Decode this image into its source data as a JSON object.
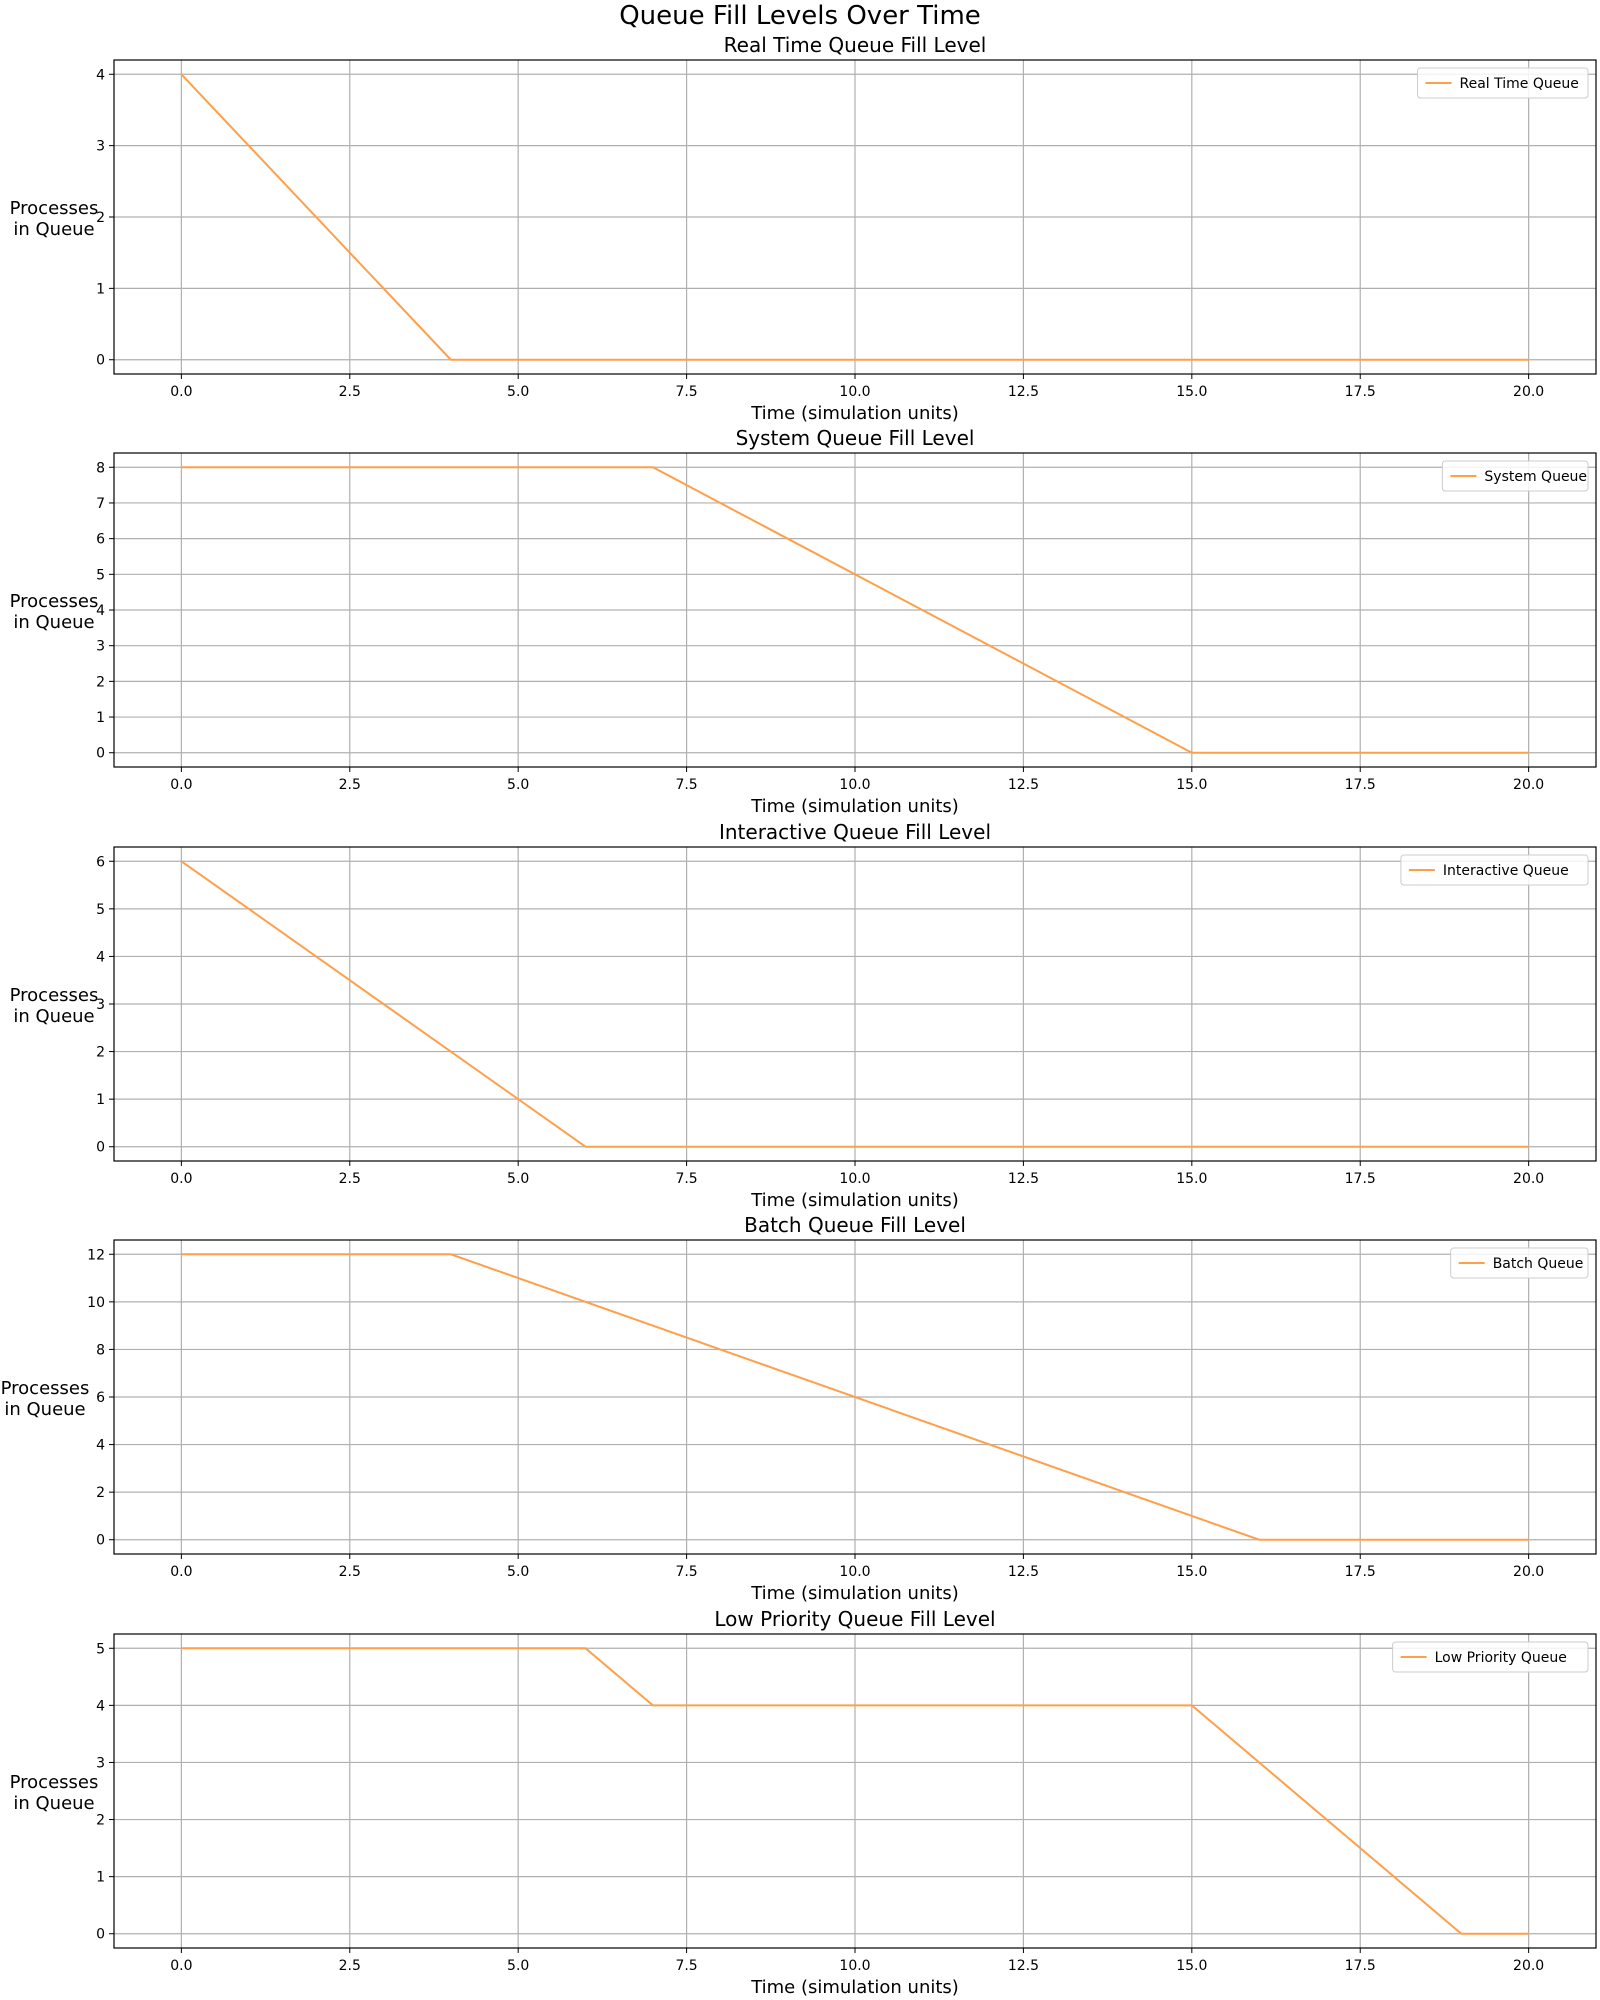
{
  "figure": {
    "title": "Queue Fill Levels Over Time",
    "line_color": "#ff9f4a",
    "grid_color": "#b0b0b0"
  },
  "chart_data": [
    {
      "type": "line",
      "title": "Real Time Queue Fill Level",
      "xlabel": "Time (simulation units)",
      "ylabel": [
        "Processes",
        "in Queue"
      ],
      "xlim": [
        -1,
        21
      ],
      "ylim": [
        -0.2,
        4.2
      ],
      "xticks": [
        "0.0",
        "2.5",
        "5.0",
        "7.5",
        "10.0",
        "12.5",
        "15.0",
        "17.5",
        "20.0"
      ],
      "yticks": [
        "0",
        "1",
        "2",
        "3",
        "4"
      ],
      "grid": true,
      "legend": "top-right",
      "series": [
        {
          "name": "Real Time Queue",
          "x": [
            0,
            4,
            20
          ],
          "y": [
            4,
            0,
            0
          ]
        }
      ]
    },
    {
      "type": "line",
      "title": "System Queue Fill Level",
      "xlabel": "Time (simulation units)",
      "ylabel": [
        "Processes",
        "in Queue"
      ],
      "xlim": [
        -1,
        21
      ],
      "ylim": [
        -0.4,
        8.4
      ],
      "xticks": [
        "0.0",
        "2.5",
        "5.0",
        "7.5",
        "10.0",
        "12.5",
        "15.0",
        "17.5",
        "20.0"
      ],
      "yticks": [
        "0",
        "1",
        "2",
        "3",
        "4",
        "5",
        "6",
        "7",
        "8"
      ],
      "grid": true,
      "legend": "top-right",
      "series": [
        {
          "name": "System Queue",
          "x": [
            0,
            7,
            15,
            20
          ],
          "y": [
            8,
            8,
            0,
            0
          ]
        }
      ]
    },
    {
      "type": "line",
      "title": "Interactive Queue Fill Level",
      "xlabel": "Time (simulation units)",
      "ylabel": [
        "Processes",
        "in Queue"
      ],
      "xlim": [
        -1,
        21
      ],
      "ylim": [
        -0.3,
        6.3
      ],
      "xticks": [
        "0.0",
        "2.5",
        "5.0",
        "7.5",
        "10.0",
        "12.5",
        "15.0",
        "17.5",
        "20.0"
      ],
      "yticks": [
        "0",
        "1",
        "2",
        "3",
        "4",
        "5",
        "6"
      ],
      "grid": true,
      "legend": "top-right",
      "series": [
        {
          "name": "Interactive Queue",
          "x": [
            0,
            6,
            20
          ],
          "y": [
            6,
            0,
            0
          ]
        }
      ]
    },
    {
      "type": "line",
      "title": "Batch Queue Fill Level",
      "xlabel": "Time (simulation units)",
      "ylabel": [
        "Processes",
        "in Queue"
      ],
      "xlim": [
        -1,
        21
      ],
      "ylim": [
        -0.6,
        12.6
      ],
      "xticks": [
        "0.0",
        "2.5",
        "5.0",
        "7.5",
        "10.0",
        "12.5",
        "15.0",
        "17.5",
        "20.0"
      ],
      "yticks": [
        "0",
        "2",
        "4",
        "6",
        "8",
        "10",
        "12"
      ],
      "grid": true,
      "legend": "top-right",
      "series": [
        {
          "name": "Batch Queue",
          "x": [
            0,
            4,
            16,
            20
          ],
          "y": [
            12,
            12,
            0,
            0
          ]
        }
      ]
    },
    {
      "type": "line",
      "title": "Low Priority Queue Fill Level",
      "xlabel": "Time (simulation units)",
      "ylabel": [
        "Processes",
        "in Queue"
      ],
      "xlim": [
        -1,
        21
      ],
      "ylim": [
        -0.25,
        5.25
      ],
      "xticks": [
        "0.0",
        "2.5",
        "5.0",
        "7.5",
        "10.0",
        "12.5",
        "15.0",
        "17.5",
        "20.0"
      ],
      "yticks": [
        "0",
        "1",
        "2",
        "3",
        "4",
        "5"
      ],
      "grid": true,
      "legend": "top-right",
      "series": [
        {
          "name": "Low Priority Queue",
          "x": [
            0,
            6,
            7,
            15,
            19,
            20
          ],
          "y": [
            5,
            5,
            4,
            4,
            0,
            0
          ]
        }
      ]
    }
  ]
}
